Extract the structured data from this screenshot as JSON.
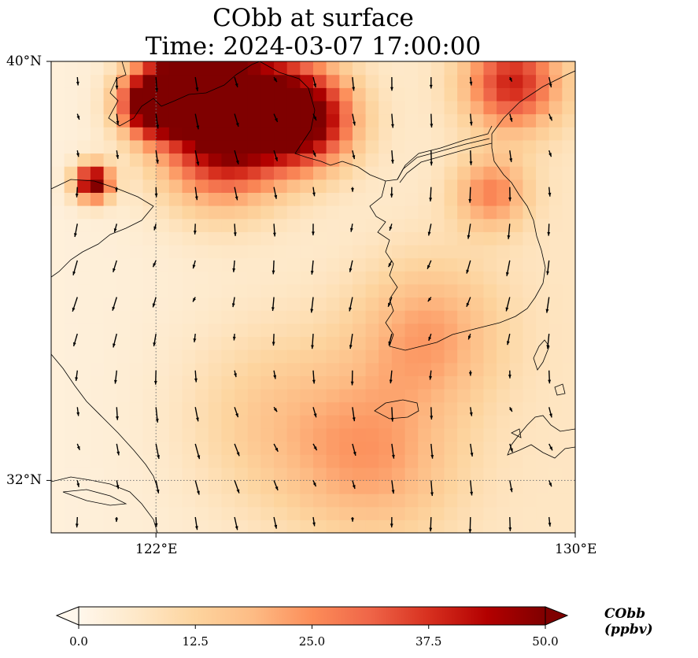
{
  "title": {
    "line1": "CObb at surface",
    "line2": "Time: 2024-03-07 17:00:00"
  },
  "map": {
    "extent": {
      "lon_min": 120,
      "lon_max": 130,
      "lat_min": 31,
      "lat_max": 40
    },
    "lat_ticks": [
      {
        "value": 40,
        "label": "40°N"
      },
      {
        "value": 32,
        "label": "32°N"
      }
    ],
    "lon_ticks": [
      {
        "value": 122,
        "label": "122°E"
      },
      {
        "value": 130,
        "label": "130°E"
      }
    ],
    "gridlines": {
      "lon": [
        122
      ],
      "lat": [
        32
      ],
      "style": "dotted"
    },
    "field_name": "CObb",
    "hotspots": [
      {
        "lon": 123.7,
        "lat": 39.3,
        "value": 42,
        "radius_deg": 1.2
      },
      {
        "lon": 121.9,
        "lat": 39.2,
        "value": 48,
        "radius_deg": 0.6
      },
      {
        "lon": 122.6,
        "lat": 39.6,
        "value": 40,
        "radius_deg": 0.8
      },
      {
        "lon": 124.9,
        "lat": 38.9,
        "value": 40,
        "radius_deg": 0.9
      },
      {
        "lon": 123.2,
        "lat": 38.4,
        "value": 30,
        "radius_deg": 1.2
      },
      {
        "lon": 128.8,
        "lat": 39.6,
        "value": 33,
        "radius_deg": 0.9
      },
      {
        "lon": 120.8,
        "lat": 37.7,
        "value": 50,
        "radius_deg": 0.35
      },
      {
        "lon": 128.4,
        "lat": 37.5,
        "value": 20,
        "radius_deg": 0.7
      },
      {
        "lon": 127.2,
        "lat": 34.8,
        "value": 16,
        "radius_deg": 1.4
      },
      {
        "lon": 126.2,
        "lat": 32.4,
        "value": 15,
        "radius_deg": 1.6
      },
      {
        "lon": 124.3,
        "lat": 33.2,
        "value": 10,
        "radius_deg": 1.8
      }
    ]
  },
  "colorbar": {
    "label": "CObb (ppbv)",
    "min": 0.0,
    "max": 50.0,
    "extend": "both",
    "ticks": [
      {
        "value": 0.0,
        "label": "0.0"
      },
      {
        "value": 12.5,
        "label": "12.5"
      },
      {
        "value": 25.0,
        "label": "25.0"
      },
      {
        "value": 37.5,
        "label": "37.5"
      },
      {
        "value": 50.0,
        "label": "50.0"
      }
    ],
    "colormap": "OrRd",
    "colors": [
      "#fff7ec",
      "#fee8c8",
      "#fdd49e",
      "#fdbb84",
      "#fc8d59",
      "#ef6548",
      "#d7301f",
      "#b30000",
      "#7f0000"
    ]
  }
}
